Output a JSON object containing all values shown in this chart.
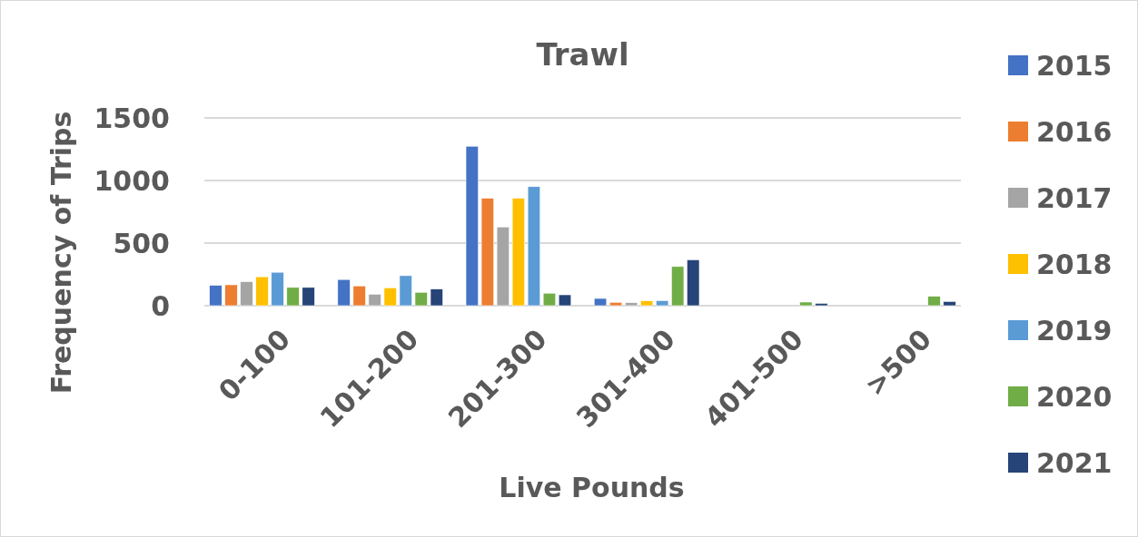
{
  "chart_data": {
    "type": "bar",
    "title": "Trawl",
    "xlabel": "Live Pounds",
    "ylabel": "Frequency of Trips",
    "categories": [
      "0-100",
      "101-200",
      "201-300",
      "301-400",
      "401-500",
      ">500"
    ],
    "series": [
      {
        "name": "2015",
        "color": "#4472c4",
        "values": [
          163,
          209,
          1274,
          58,
          0,
          0
        ]
      },
      {
        "name": "2016",
        "color": "#ed7d31",
        "values": [
          167,
          158,
          859,
          27,
          0,
          0
        ]
      },
      {
        "name": "2017",
        "color": "#a5a5a5",
        "values": [
          192,
          92,
          629,
          24,
          0,
          0
        ]
      },
      {
        "name": "2018",
        "color": "#ffc000",
        "values": [
          231,
          143,
          859,
          39,
          0,
          0
        ]
      },
      {
        "name": "2019",
        "color": "#5b9bd5",
        "values": [
          267,
          240,
          951,
          41,
          0,
          0
        ]
      },
      {
        "name": "2020",
        "color": "#70ad47",
        "values": [
          146,
          107,
          100,
          313,
          29,
          75
        ]
      },
      {
        "name": "2021",
        "color": "#264478",
        "values": [
          146,
          133,
          87,
          367,
          19,
          34
        ]
      }
    ],
    "ylim": [
      0,
      1500
    ],
    "yticks": [
      0,
      500,
      1000,
      1500
    ],
    "grid": "y",
    "legend": "right"
  }
}
